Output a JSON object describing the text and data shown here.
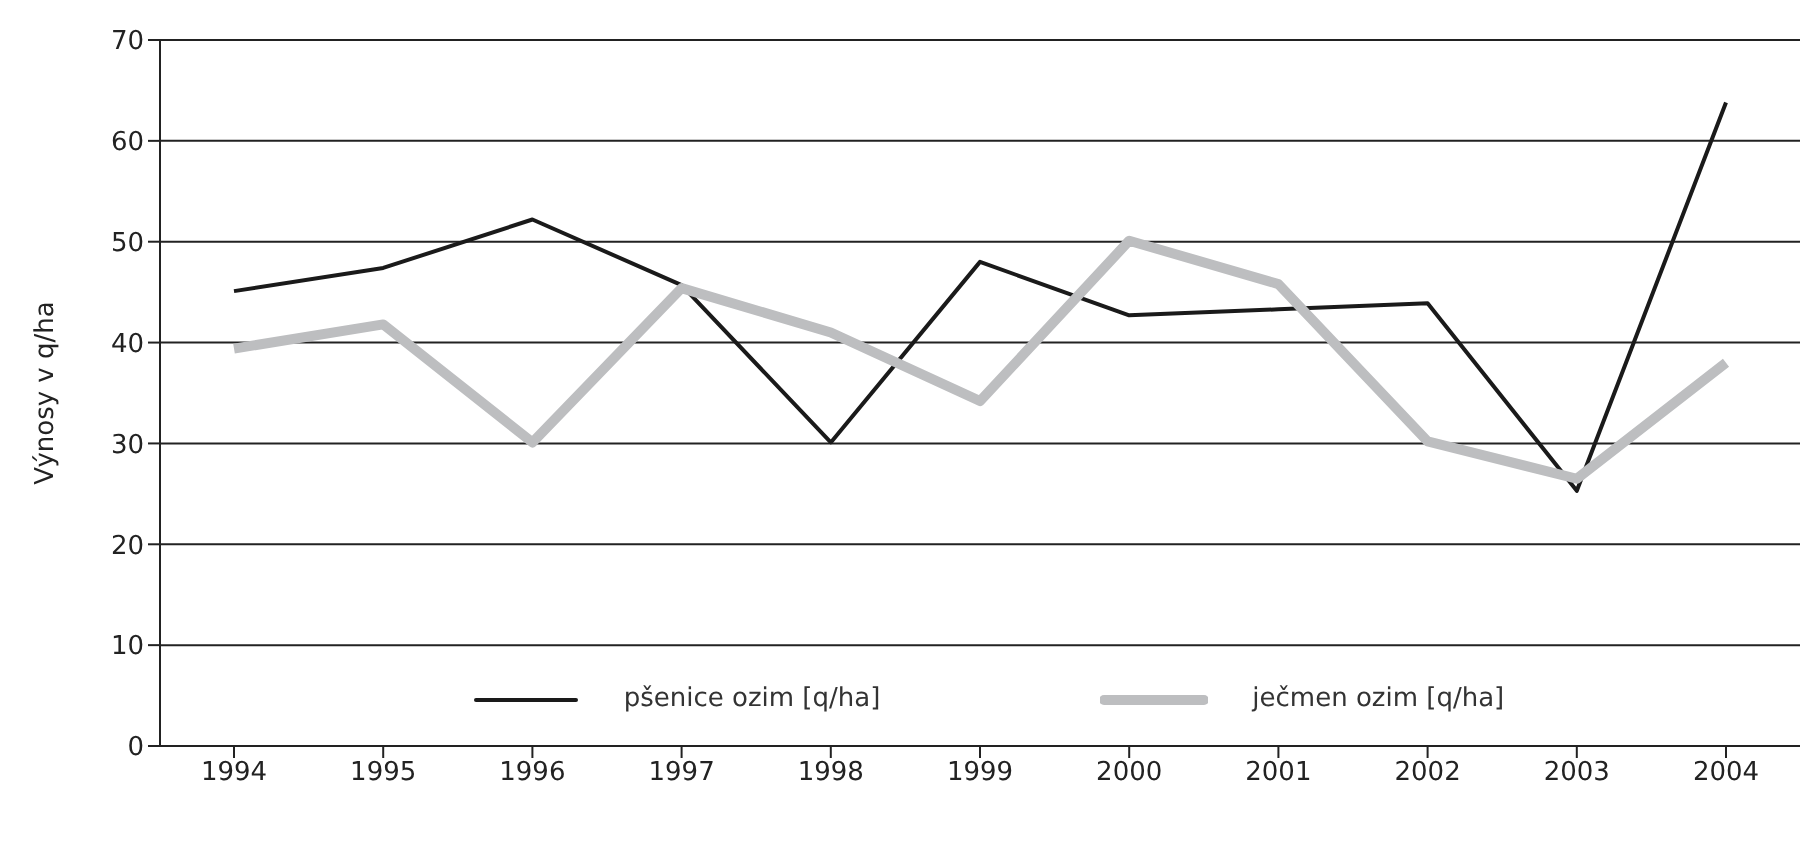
{
  "chart_data": {
    "type": "line",
    "ylabel": "Výnosy v q/ha",
    "categories": [
      "1994",
      "1995",
      "1996",
      "1997",
      "1998",
      "1999",
      "2000",
      "2001",
      "2002",
      "2003",
      "2004"
    ],
    "series": [
      {
        "name": "pšenice ozim [q/ha]",
        "color": "#1a1a1a",
        "values": [
          45.1,
          47.4,
          52.2,
          45.7,
          30.1,
          48.0,
          42.7,
          43.3,
          43.9,
          25.3,
          63.8
        ]
      },
      {
        "name": "ječmen ozim [q/ha]",
        "color": "#bdbec0",
        "values": [
          39.4,
          41.8,
          30.1,
          45.4,
          41.0,
          34.2,
          50.1,
          45.8,
          30.2,
          26.5,
          38.0
        ]
      }
    ],
    "ylim": [
      0,
      70
    ],
    "yticks": [
      0,
      10,
      20,
      30,
      40,
      50,
      60,
      70
    ],
    "grid": "y",
    "legend": "bottom",
    "marker": "none",
    "line_style": "solid"
  }
}
